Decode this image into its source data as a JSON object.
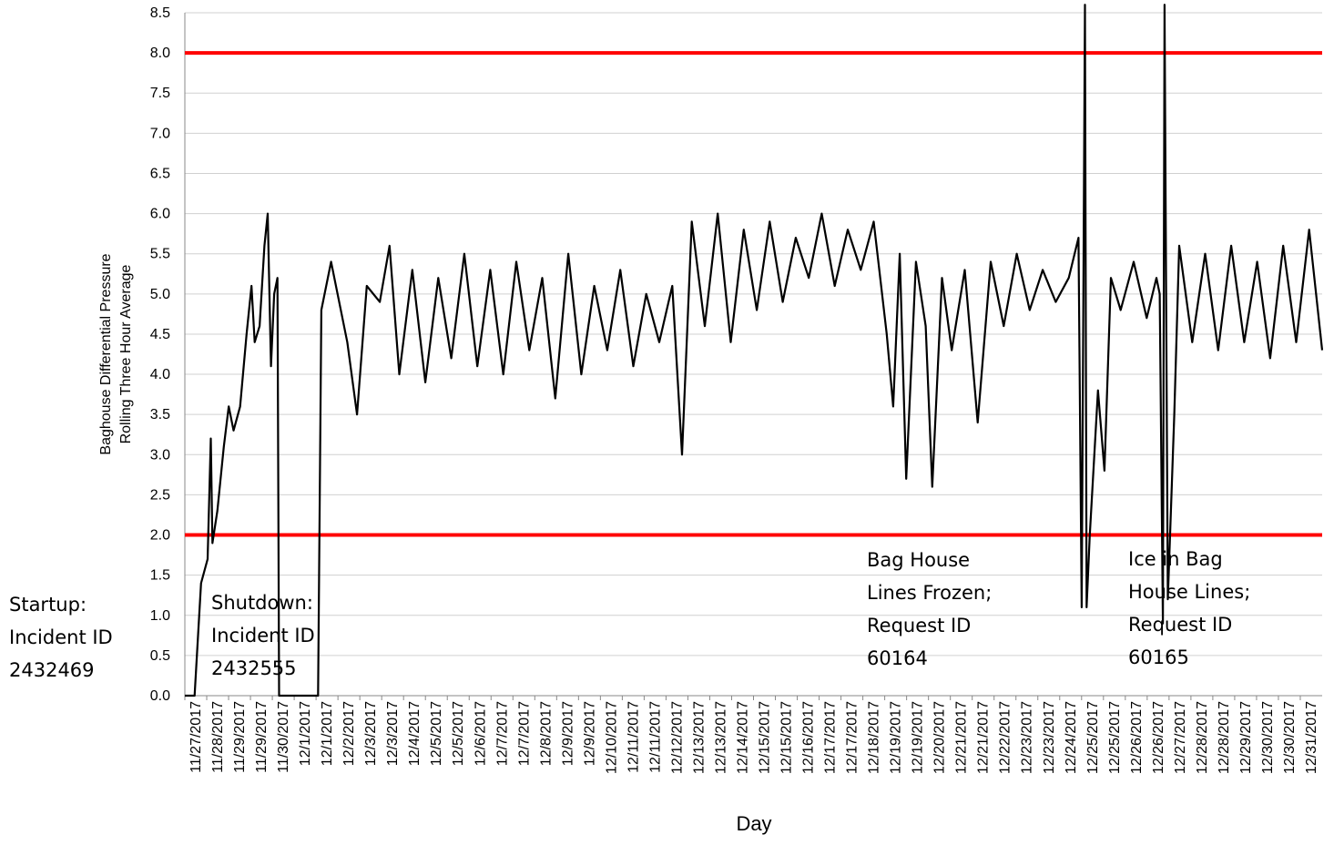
{
  "chart_data": {
    "type": "line",
    "title": "",
    "xlabel": "Day",
    "ylabel_lines": [
      "Baghouse Differential Pressure",
      "Rolling Three Hour Average"
    ],
    "ylim": [
      0,
      8.5
    ],
    "y_ticks": [
      "0.0",
      "0.5",
      "1.0",
      "1.5",
      "2.0",
      "2.5",
      "3.0",
      "3.5",
      "4.0",
      "4.5",
      "5.0",
      "5.5",
      "6.0",
      "6.5",
      "7.0",
      "7.5",
      "8.0",
      "8.5"
    ],
    "x_tick_labels": [
      "11/27/2017",
      "11/28/2017",
      "11/29/2017",
      "11/29/2017",
      "11/30/2017",
      "12/1/2017",
      "12/1/2017",
      "12/2/2017",
      "12/3/2017",
      "12/3/2017",
      "12/4/2017",
      "12/5/2017",
      "12/5/2017",
      "12/6/2017",
      "12/7/2017",
      "12/7/2017",
      "12/8/2017",
      "12/9/2017",
      "12/9/2017",
      "12/10/2017",
      "12/11/2017",
      "12/11/2017",
      "12/12/2017",
      "12/13/2017",
      "12/13/2017",
      "12/14/2017",
      "12/15/2017",
      "12/15/2017",
      "12/16/2017",
      "12/17/2017",
      "12/17/2017",
      "12/18/2017",
      "12/19/2017",
      "12/19/2017",
      "12/20/2017",
      "12/21/2017",
      "12/21/2017",
      "12/22/2017",
      "12/23/2017",
      "12/23/2017",
      "12/24/2017",
      "12/25/2017",
      "12/25/2017",
      "12/26/2017",
      "12/26/2017",
      "12/27/2017",
      "12/28/2017",
      "12/28/2017",
      "12/29/2017",
      "12/30/2017",
      "12/30/2017",
      "12/31/2017"
    ],
    "x_range_days": [
      0,
      35
    ],
    "limit_lines": [
      {
        "value": 8.0,
        "color": "#ff0000"
      },
      {
        "value": 2.0,
        "color": "#ff0000"
      }
    ],
    "series": [
      {
        "color": "#000000",
        "points": [
          [
            0.0,
            0.0
          ],
          [
            0.3,
            0.0
          ],
          [
            0.5,
            1.4
          ],
          [
            0.7,
            1.7
          ],
          [
            0.8,
            3.2
          ],
          [
            0.85,
            1.9
          ],
          [
            1.0,
            2.3
          ],
          [
            1.2,
            3.1
          ],
          [
            1.35,
            3.6
          ],
          [
            1.5,
            3.3
          ],
          [
            1.7,
            3.6
          ],
          [
            1.9,
            4.5
          ],
          [
            2.05,
            5.1
          ],
          [
            2.15,
            4.4
          ],
          [
            2.3,
            4.6
          ],
          [
            2.45,
            5.6
          ],
          [
            2.55,
            6.0
          ],
          [
            2.65,
            4.1
          ],
          [
            2.75,
            5.0
          ],
          [
            2.85,
            5.2
          ],
          [
            2.9,
            0.0
          ],
          [
            4.1,
            0.0
          ],
          [
            4.2,
            4.8
          ],
          [
            4.5,
            5.4
          ],
          [
            5.0,
            4.4
          ],
          [
            5.3,
            3.5
          ],
          [
            5.6,
            5.1
          ],
          [
            6.0,
            4.9
          ],
          [
            6.3,
            5.6
          ],
          [
            6.6,
            4.0
          ],
          [
            7.0,
            5.3
          ],
          [
            7.4,
            3.9
          ],
          [
            7.8,
            5.2
          ],
          [
            8.2,
            4.2
          ],
          [
            8.6,
            5.5
          ],
          [
            9.0,
            4.1
          ],
          [
            9.4,
            5.3
          ],
          [
            9.8,
            4.0
          ],
          [
            10.2,
            5.4
          ],
          [
            10.6,
            4.3
          ],
          [
            11.0,
            5.2
          ],
          [
            11.4,
            3.7
          ],
          [
            11.8,
            5.5
          ],
          [
            12.2,
            4.0
          ],
          [
            12.6,
            5.1
          ],
          [
            13.0,
            4.3
          ],
          [
            13.4,
            5.3
          ],
          [
            13.8,
            4.1
          ],
          [
            14.2,
            5.0
          ],
          [
            14.6,
            4.4
          ],
          [
            15.0,
            5.1
          ],
          [
            15.3,
            3.0
          ],
          [
            15.6,
            5.9
          ],
          [
            16.0,
            4.6
          ],
          [
            16.4,
            6.0
          ],
          [
            16.8,
            4.4
          ],
          [
            17.2,
            5.8
          ],
          [
            17.6,
            4.8
          ],
          [
            18.0,
            5.9
          ],
          [
            18.4,
            4.9
          ],
          [
            18.8,
            5.7
          ],
          [
            19.2,
            5.2
          ],
          [
            19.6,
            6.0
          ],
          [
            20.0,
            5.1
          ],
          [
            20.4,
            5.8
          ],
          [
            20.8,
            5.3
          ],
          [
            21.2,
            5.9
          ],
          [
            21.6,
            4.5
          ],
          [
            21.8,
            3.6
          ],
          [
            22.0,
            5.5
          ],
          [
            22.2,
            2.7
          ],
          [
            22.5,
            5.4
          ],
          [
            22.8,
            4.6
          ],
          [
            23.0,
            2.6
          ],
          [
            23.3,
            5.2
          ],
          [
            23.6,
            4.3
          ],
          [
            24.0,
            5.3
          ],
          [
            24.4,
            3.4
          ],
          [
            24.8,
            5.4
          ],
          [
            25.2,
            4.6
          ],
          [
            25.6,
            5.5
          ],
          [
            26.0,
            4.8
          ],
          [
            26.4,
            5.3
          ],
          [
            26.8,
            4.9
          ],
          [
            27.2,
            5.2
          ],
          [
            27.5,
            5.7
          ],
          [
            27.6,
            1.1
          ],
          [
            27.7,
            8.6
          ],
          [
            27.75,
            1.1
          ],
          [
            27.85,
            2.0
          ],
          [
            28.1,
            3.8
          ],
          [
            28.3,
            2.8
          ],
          [
            28.5,
            5.2
          ],
          [
            28.8,
            4.8
          ],
          [
            29.2,
            5.4
          ],
          [
            29.6,
            4.7
          ],
          [
            29.9,
            5.2
          ],
          [
            30.0,
            5.0
          ],
          [
            30.1,
            0.9
          ],
          [
            30.15,
            8.6
          ],
          [
            30.25,
            1.2
          ],
          [
            30.45,
            3.5
          ],
          [
            30.6,
            5.6
          ],
          [
            31.0,
            4.4
          ],
          [
            31.4,
            5.5
          ],
          [
            31.8,
            4.3
          ],
          [
            32.2,
            5.6
          ],
          [
            32.6,
            4.4
          ],
          [
            33.0,
            5.4
          ],
          [
            33.4,
            4.2
          ],
          [
            33.8,
            5.6
          ],
          [
            34.2,
            4.4
          ],
          [
            34.6,
            5.8
          ],
          [
            35.0,
            4.3
          ]
        ]
      }
    ],
    "annotations": [
      {
        "lines": [
          "Startup:",
          "Incident ID",
          "2432469"
        ]
      },
      {
        "lines": [
          "Shutdown:",
          "Incident ID",
          "2432555"
        ]
      },
      {
        "lines": [
          "Bag House",
          "Lines Frozen;",
          "Request ID",
          "60164"
        ]
      },
      {
        "lines": [
          "Ice in Bag",
          "House Lines;",
          "Request ID",
          "60165"
        ]
      }
    ]
  }
}
